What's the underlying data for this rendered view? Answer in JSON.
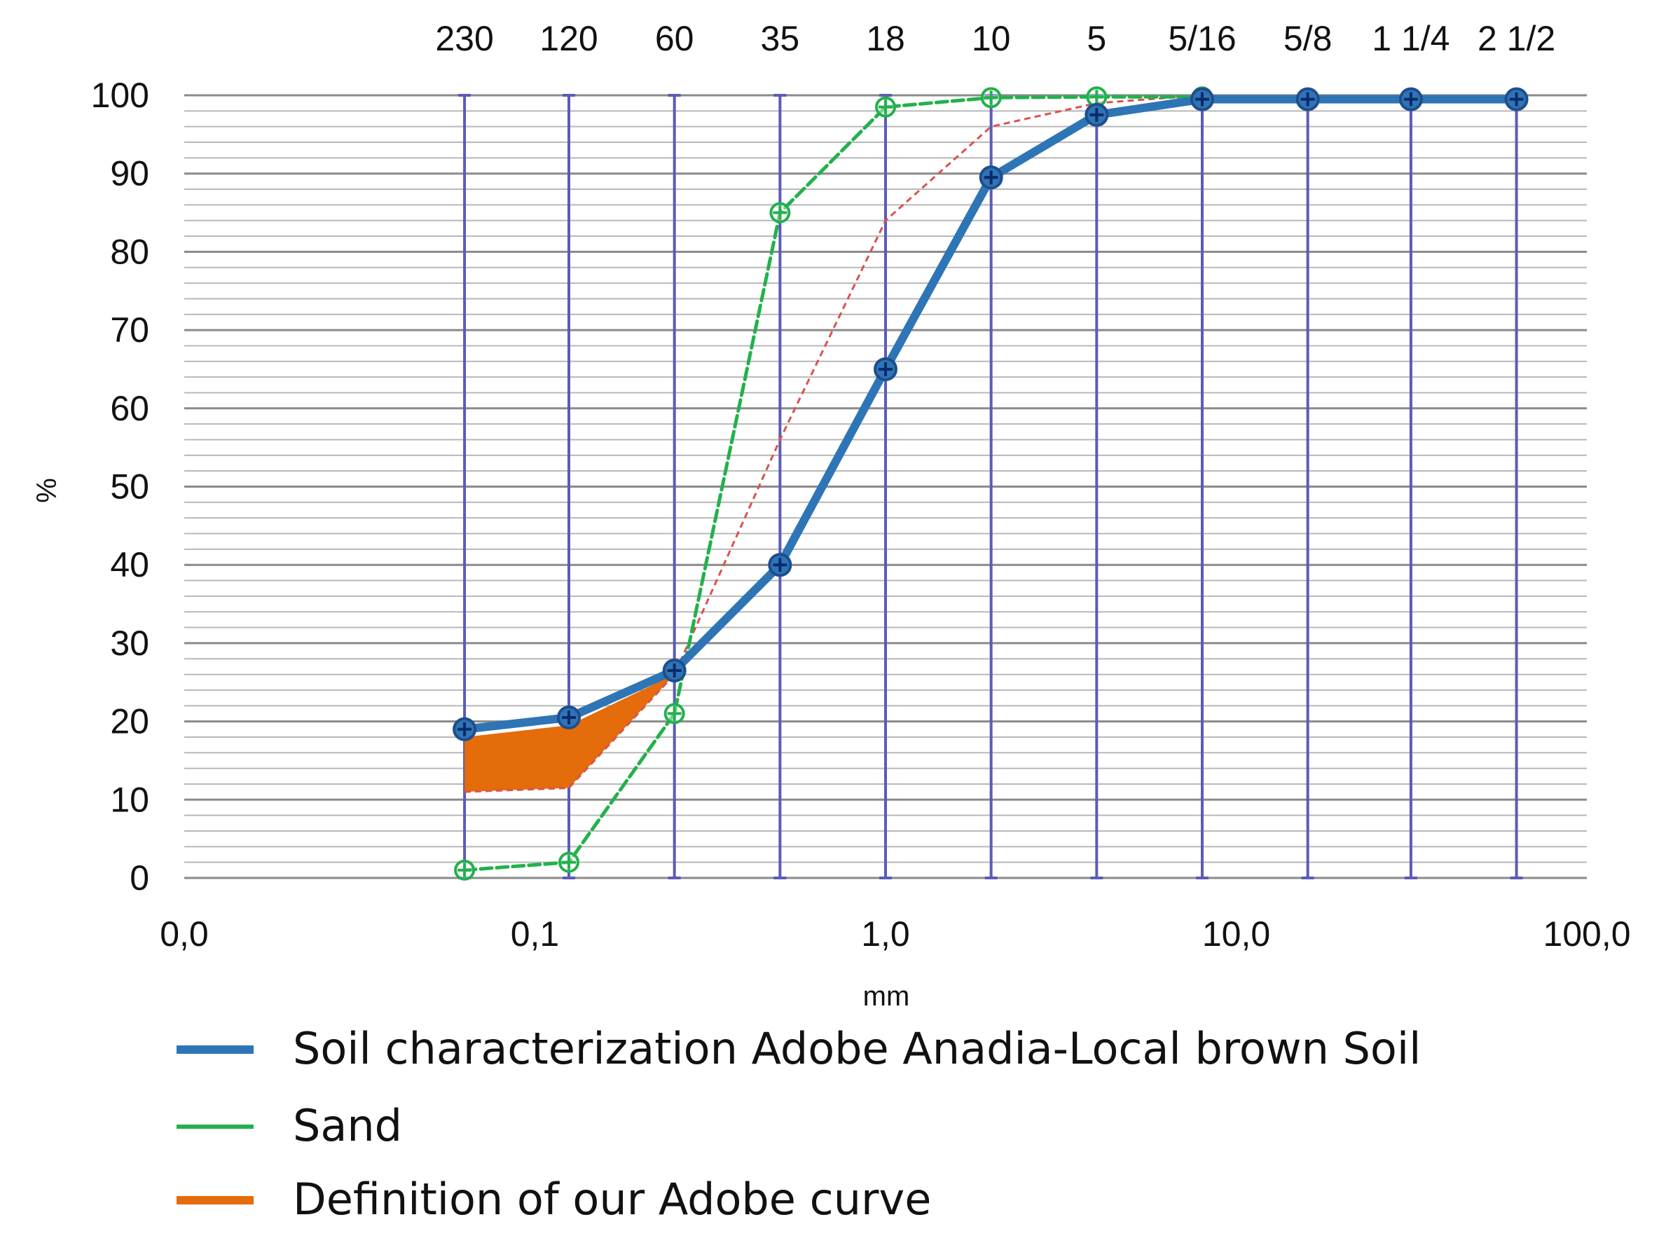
{
  "chart_data": {
    "type": "line",
    "x_scale": "log",
    "xlim": [
      0.01,
      100
    ],
    "ylim": [
      0,
      100
    ],
    "y_ticks": [
      0,
      10,
      20,
      30,
      40,
      50,
      60,
      70,
      80,
      90,
      100
    ],
    "x_tick_labels": [
      {
        "value": 0.01,
        "label": "0,0"
      },
      {
        "value": 0.1,
        "label": "0,1"
      },
      {
        "value": 1,
        "label": "1,0"
      },
      {
        "value": 10,
        "label": "10,0"
      },
      {
        "value": 100,
        "label": "100,0"
      }
    ],
    "sieves": [
      {
        "size_mm": 0.063,
        "label": "230"
      },
      {
        "size_mm": 0.125,
        "label": "120"
      },
      {
        "size_mm": 0.25,
        "label": "60"
      },
      {
        "size_mm": 0.5,
        "label": "35"
      },
      {
        "size_mm": 1.0,
        "label": "18"
      },
      {
        "size_mm": 2.0,
        "label": "10"
      },
      {
        "size_mm": 4.0,
        "label": "5"
      },
      {
        "size_mm": 8.0,
        "label": "5/16"
      },
      {
        "size_mm": 16.0,
        "label": "5/8"
      },
      {
        "size_mm": 31.5,
        "label": "1 1/4"
      },
      {
        "size_mm": 63.0,
        "label": "2 1/2"
      }
    ],
    "xlabel": "mm",
    "ylabel": "%",
    "grid": true,
    "legend_position": "bottom",
    "series": [
      {
        "name": "Soil characterization Adobe Anadia-Local brown Soil",
        "color": "#2e75b6",
        "x": [
          0.063,
          0.125,
          0.25,
          0.5,
          1.0,
          2.0,
          4.0,
          8.0,
          16.0,
          31.5,
          63.0
        ],
        "y": [
          19,
          20.5,
          26.5,
          40,
          65,
          89.5,
          97.5,
          99.5,
          99.5,
          99.5,
          99.5
        ]
      },
      {
        "name": "Sand",
        "color": "#22b14c",
        "x": [
          0.063,
          0.125,
          0.25,
          0.5,
          1.0,
          2.0,
          4.0,
          8.0
        ],
        "y": [
          1,
          2,
          21,
          85,
          98.5,
          99.7,
          99.8,
          99.8
        ]
      },
      {
        "name": "Definition of our Adobe curve",
        "color": "#e46c0a",
        "upper_x": [
          0.063,
          0.125,
          0.25
        ],
        "upper_y": [
          18,
          19.5,
          26
        ],
        "lower_x": [
          0.063,
          0.125,
          0.25,
          0.5,
          1.0,
          2.0,
          4.0,
          8.0
        ],
        "lower_y": [
          11,
          11.5,
          26,
          56,
          84,
          96,
          99,
          100
        ]
      }
    ]
  }
}
